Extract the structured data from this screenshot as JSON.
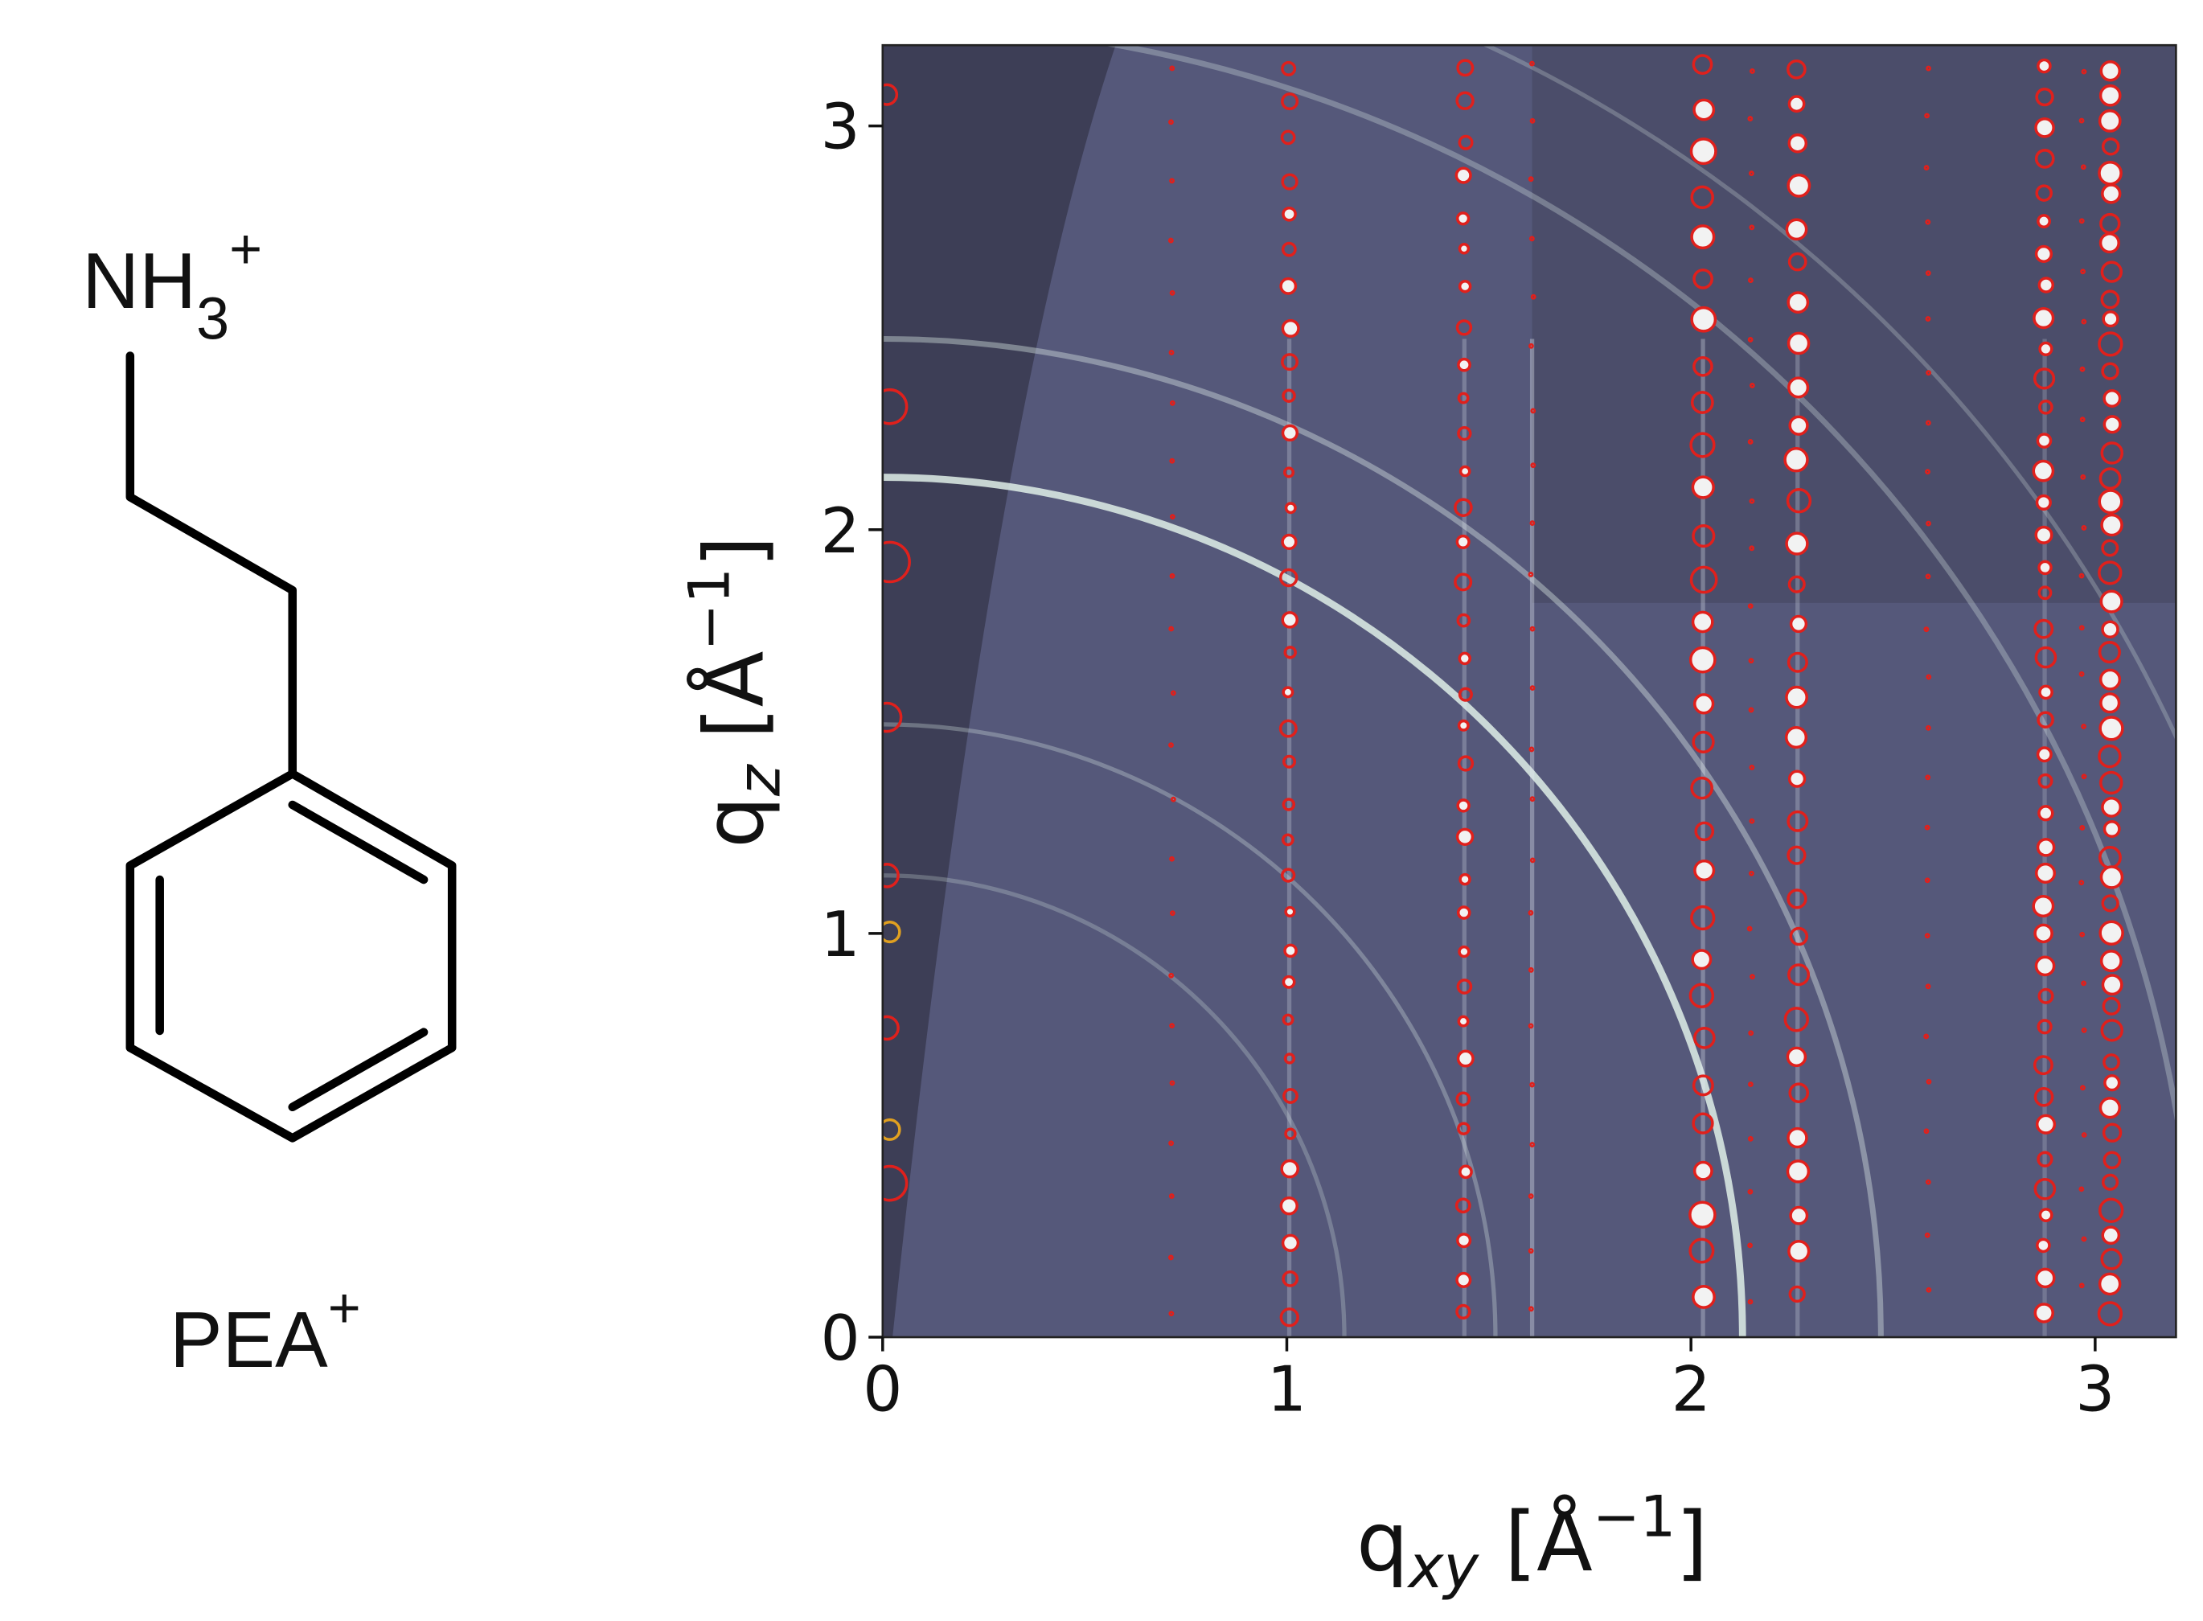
{
  "chart_data": {
    "type": "image",
    "xlabel": [
      "q",
      "xy",
      " [Å",
      "−1",
      "]"
    ],
    "ylabel": [
      "q",
      "z",
      " [Å",
      "−1",
      "]"
    ],
    "xlim": [
      0,
      3.2
    ],
    "ylim": [
      0,
      3.2
    ],
    "xticks": [
      0,
      1,
      2,
      3
    ],
    "yticks": [
      0,
      1,
      2,
      3
    ]
  },
  "molecule": {
    "group_label": [
      "NH",
      "3",
      "+"
    ],
    "name": [
      "PEA",
      "+"
    ]
  }
}
